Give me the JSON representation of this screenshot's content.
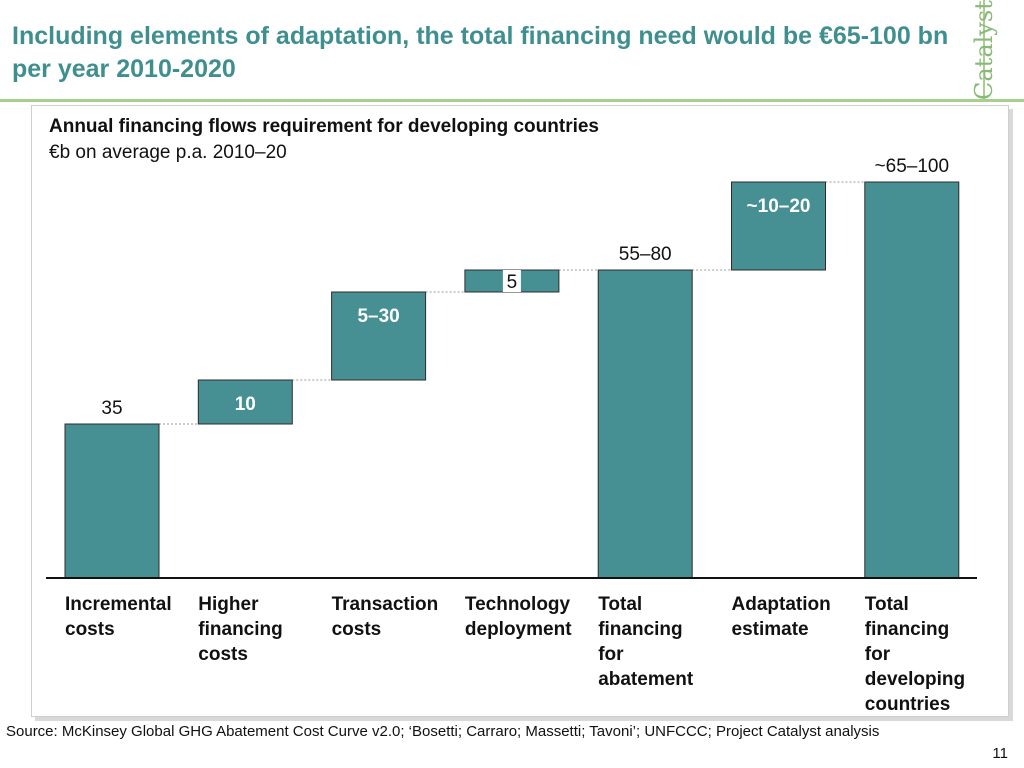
{
  "header": {
    "title": "Including elements of adaptation, the total financing need would be €65-100 bn per year 2010-2020",
    "brand": "Catalyst"
  },
  "chart_data": {
    "type": "bar",
    "title": "Annual financing flows requirement for developing countries",
    "subtitle": "€b on average p.a. 2010–20",
    "colors": {
      "bar": "#468f93",
      "bar_border": "#2d2d2d",
      "connector": "#9a9a9a"
    },
    "categories": [
      "Incremental costs",
      "Higher financing costs",
      "Transaction costs",
      "Technology deployment",
      "Total financing for abatement",
      "Adaptation estimate",
      "Total financing for developing countries"
    ],
    "bars": [
      {
        "category": "Incremental costs",
        "kind": "total",
        "base": 0,
        "top": 35,
        "label": "35",
        "label_position": "above"
      },
      {
        "category": "Higher financing costs",
        "kind": "delta",
        "base": 35,
        "top": 45,
        "label": "10",
        "label_position": "inside"
      },
      {
        "category": "Transaction costs",
        "kind": "delta",
        "base": 45,
        "top": 65,
        "label": "5–30",
        "label_position": "inside"
      },
      {
        "category": "Technology deployment",
        "kind": "delta",
        "base": 65,
        "top": 70,
        "label": "5",
        "label_position": "inside-box"
      },
      {
        "category": "Total financing for abatement",
        "kind": "total",
        "base": 0,
        "top": 70,
        "label": "55–80",
        "label_position": "above"
      },
      {
        "category": "Adaptation estimate",
        "kind": "delta",
        "base": 70,
        "top": 90,
        "label": "~10–20",
        "label_position": "inside"
      },
      {
        "category": "Total financing for developing countries",
        "kind": "total",
        "base": 0,
        "top": 90,
        "label": "~65–100",
        "label_position": "above"
      }
    ],
    "ylim": [
      0,
      100
    ],
    "grid": false,
    "legend": "none"
  },
  "footer": {
    "source": "Source: McKinsey Global GHG Abatement Cost Curve v2.0; ‘Bosetti; Carraro; Massetti; Tavoni’; UNFCCC; Project Catalyst analysis",
    "page": "11"
  }
}
